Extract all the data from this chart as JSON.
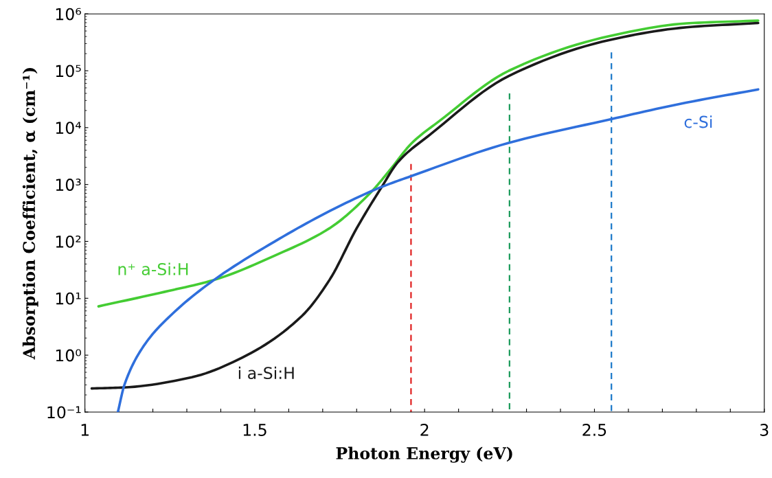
{
  "chart_data": {
    "type": "line",
    "xlabel": "Photon Energy (eV)",
    "ylabel": "Absorption Coefficient, α (cm⁻¹)",
    "log": "y",
    "xlim": [
      1,
      3
    ],
    "ylim": [
      0.1,
      1000000
    ],
    "xticks": [
      1,
      {
        "value": 1.1,
        "label": null
      },
      {
        "value": 1.2,
        "label": null
      },
      {
        "value": 1.3,
        "label": null
      },
      {
        "value": 1.4,
        "label": null
      },
      1.5,
      {
        "value": 1.6,
        "label": null
      },
      {
        "value": 1.7,
        "label": null
      },
      {
        "value": 1.8,
        "label": null
      },
      {
        "value": 1.9,
        "label": null
      },
      2,
      {
        "value": 2.1,
        "label": null
      },
      {
        "value": 2.2,
        "label": null
      },
      {
        "value": 2.3,
        "label": null
      },
      {
        "value": 2.4,
        "label": null
      },
      2.5,
      {
        "value": 2.6,
        "label": null
      },
      {
        "value": 2.7,
        "label": null
      },
      {
        "value": 2.8,
        "label": null
      },
      {
        "value": 2.9,
        "label": null
      },
      3
    ],
    "yticks": [
      {
        "value": 0.1,
        "label": "10⁻¹"
      },
      {
        "value": 1,
        "label": "10⁰"
      },
      {
        "value": 10,
        "label": "10¹"
      },
      {
        "value": 100,
        "label": "10²"
      },
      {
        "value": 1000,
        "label": "10³"
      },
      {
        "value": 10000,
        "label": "10⁴"
      },
      {
        "value": 100000,
        "label": "10⁵"
      },
      {
        "value": 1000000,
        "label": "10⁶"
      }
    ],
    "grid": false,
    "legend": false,
    "marker": "none",
    "line_style": "solid",
    "series": [
      {
        "name": "n⁺ a-Si:H",
        "color": "#44cc33",
        "x": [
          1.04,
          1.235,
          1.38,
          1.558,
          1.72,
          1.841,
          1.898,
          1.963,
          2.043,
          2.248,
          2.547,
          2.771,
          2.982
        ],
        "values": [
          7.2,
          13,
          21,
          56,
          170,
          720,
          1800,
          5400,
          13000,
          100000,
          410000,
          680000,
          760000
        ]
      },
      {
        "name": "i a-Si:H",
        "color": "#1a1a1a",
        "x": [
          1.02,
          1.113,
          1.315,
          1.477,
          1.639,
          1.72,
          1.8,
          1.874,
          1.922,
          2.017,
          2.248,
          2.547,
          2.771,
          2.982
        ],
        "values": [
          0.26,
          0.27,
          0.41,
          1.0,
          4.9,
          21,
          170,
          910,
          2500,
          7600,
          81000,
          350000,
          580000,
          690000
        ]
      },
      {
        "name": "c-Si",
        "color": "#2f6fdc",
        "x": [
          1.097,
          1.117,
          1.178,
          1.251,
          1.38,
          1.558,
          1.72,
          1.866,
          1.96,
          2.248,
          2.547,
          2.75,
          2.982
        ],
        "values": [
          0.1,
          0.31,
          1.6,
          4.9,
          21,
          99,
          340,
          870,
          1400,
          5400,
          14000,
          26000,
          47000
        ]
      },
      {
        "color": "#e02020",
        "line_style": "dashed",
        "x": [
          1.96,
          1.96
        ],
        "values": [
          0.1,
          2300
        ]
      },
      {
        "color": "#1a9a5a",
        "line_style": "dashed",
        "x": [
          2.25,
          2.25
        ],
        "values": [
          0.1,
          40000
        ]
      },
      {
        "color": "#1a78c8",
        "line_style": "dashed",
        "x": [
          2.55,
          2.55
        ],
        "values": [
          0.1,
          210000
        ]
      }
    ]
  }
}
